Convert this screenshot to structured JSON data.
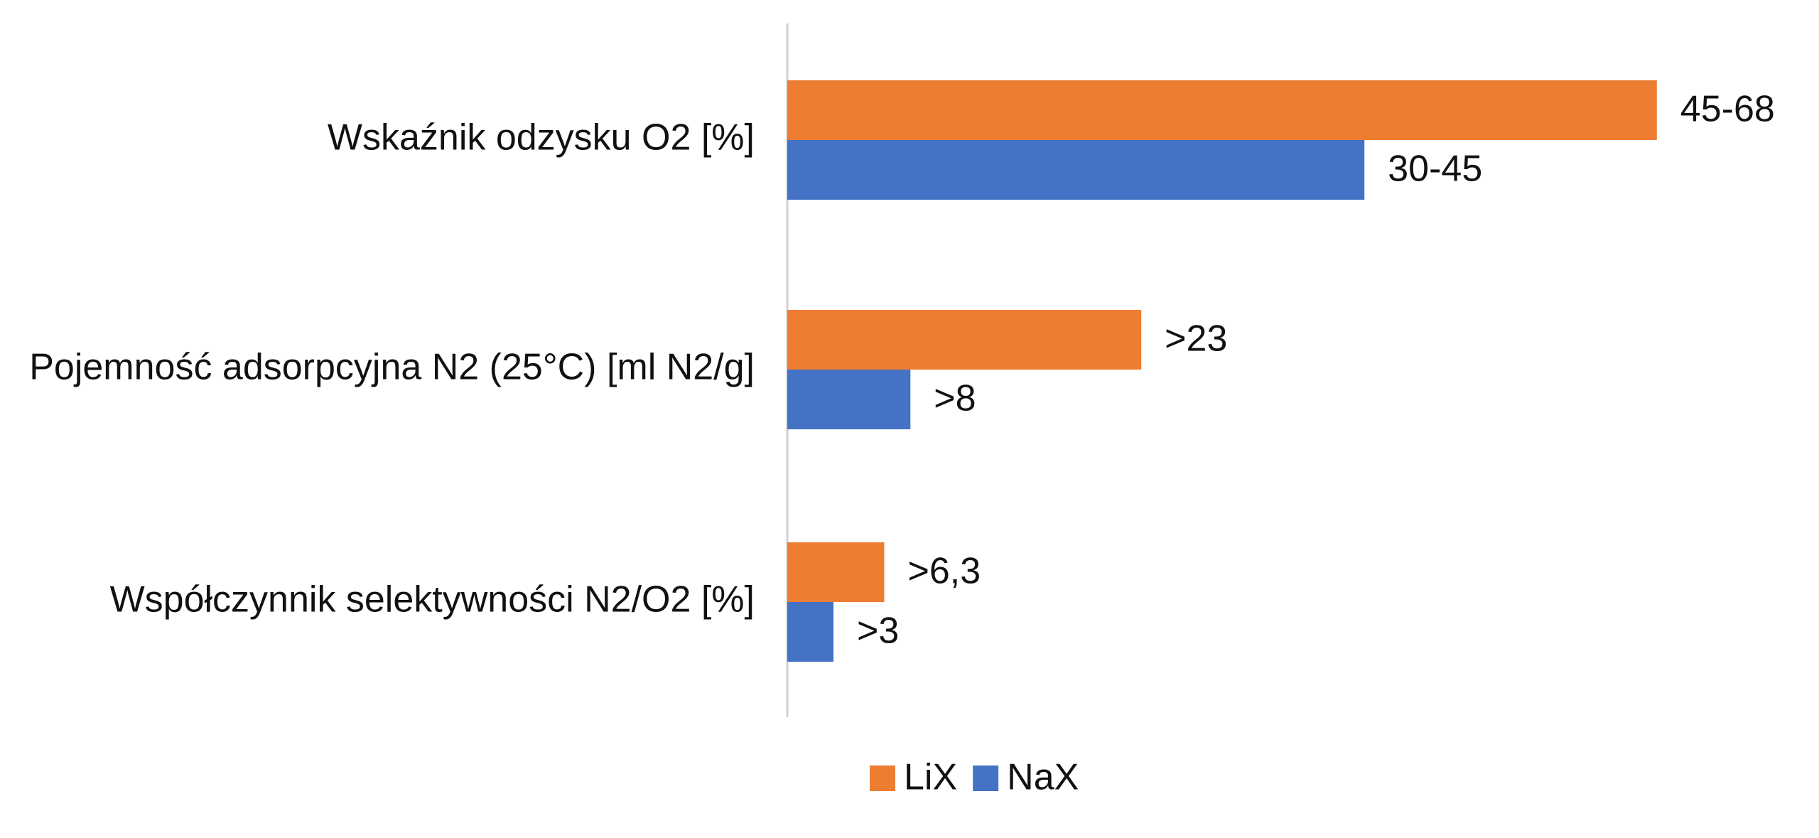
{
  "chart_data": {
    "type": "barh",
    "categories": [
      "Wskaźnik odzysku O2 [%]",
      "Pojemność adsorpcyjna N2 (25°C) [ml N2/g]",
      "Współczynnik selektywności N2/O2 [%]"
    ],
    "series": [
      {
        "name": "LiX",
        "color": "#ED7D31",
        "values": [
          56.5,
          23,
          6.3
        ],
        "value_labels": [
          "45-68",
          ">23",
          ">6,3"
        ]
      },
      {
        "name": "NaX",
        "color": "#4472C4",
        "values": [
          37.5,
          8,
          3
        ],
        "value_labels": [
          "30-45",
          ">8",
          ">3"
        ]
      }
    ],
    "legend": "bottom"
  }
}
